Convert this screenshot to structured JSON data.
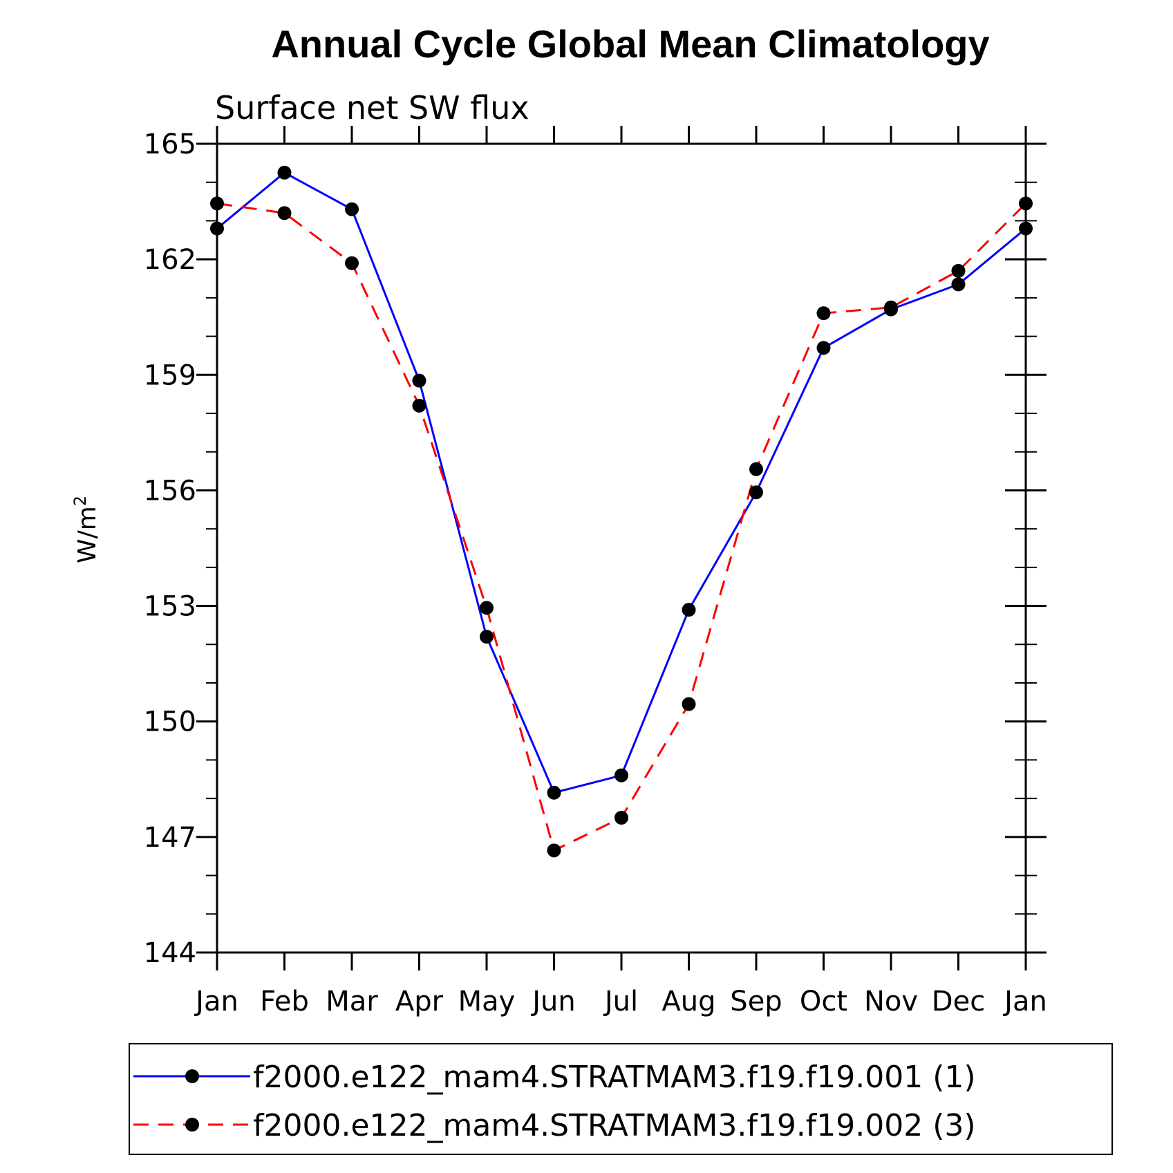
{
  "chart_data": {
    "type": "line",
    "title": "Annual Cycle Global Mean Climatology",
    "subtitle": "Surface net SW flux",
    "ylabel": "W/m",
    "ylabel_sup": "2",
    "xlabel": "",
    "categories": [
      "Jan",
      "Feb",
      "Mar",
      "Apr",
      "May",
      "Jun",
      "Jul",
      "Aug",
      "Sep",
      "Oct",
      "Nov",
      "Dec",
      "Jan"
    ],
    "ylim": [
      144,
      165
    ],
    "yticks": [
      144,
      147,
      150,
      153,
      156,
      159,
      162,
      165
    ],
    "yticks_labels": [
      "144",
      "147",
      "150",
      "153",
      "156",
      "159",
      "162",
      "165"
    ],
    "grid": false,
    "legend_position": "bottom",
    "series": [
      {
        "name": "f2000.e122_mam4.STRATMAM3.f19.f19.001 (1)",
        "color": "#0000ff",
        "dash": "solid",
        "values": [
          162.8,
          164.25,
          163.3,
          158.85,
          152.2,
          148.15,
          148.6,
          152.9,
          155.95,
          159.7,
          160.7,
          161.35,
          162.8
        ]
      },
      {
        "name": "f2000.e122_mam4.STRATMAM3.f19.f19.002 (3)",
        "color": "#ff0000",
        "dash": "dashed",
        "values": [
          163.45,
          163.2,
          161.9,
          158.2,
          152.95,
          146.65,
          147.5,
          150.45,
          156.55,
          160.6,
          160.75,
          161.7,
          163.45
        ]
      }
    ]
  }
}
